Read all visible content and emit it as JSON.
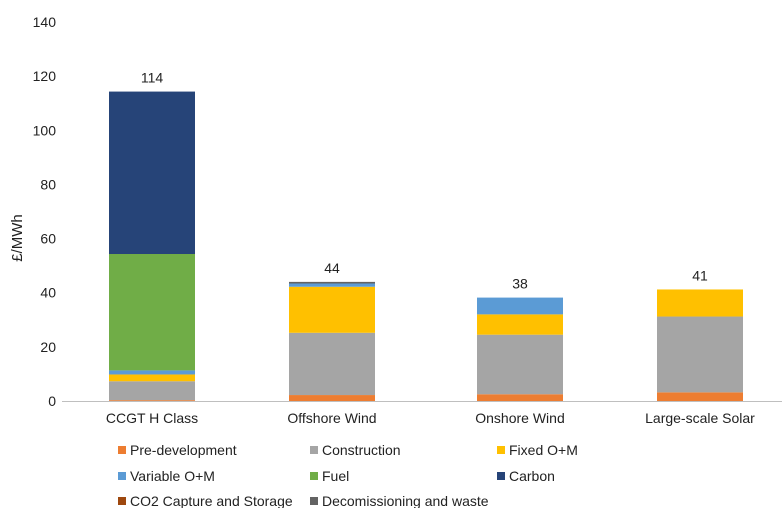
{
  "chart_data": {
    "type": "bar",
    "stacked": true,
    "ylabel": "£/MWh",
    "ylim": [
      0,
      140
    ],
    "yticks": [
      0,
      20,
      40,
      60,
      80,
      100,
      120,
      140
    ],
    "grid": false,
    "legend_position": "bottom",
    "categories": [
      "CCGT H Class",
      "Offshore Wind",
      "Onshore Wind",
      "Large-scale Solar"
    ],
    "totals": [
      "114",
      "44",
      "38",
      "41"
    ],
    "series": [
      {
        "name": "Pre-development",
        "color": "#ED7D31",
        "values": [
          0.3,
          2.2,
          2.5,
          3.2
        ]
      },
      {
        "name": "Construction",
        "color": "#A5A5A5",
        "values": [
          7,
          23,
          22,
          28
        ]
      },
      {
        "name": "Fixed O+M",
        "color": "#FFC000",
        "values": [
          2.5,
          17,
          7.5,
          10
        ]
      },
      {
        "name": "Variable O+M",
        "color": "#5B9BD5",
        "values": [
          1.5,
          1.2,
          6.2,
          0
        ]
      },
      {
        "name": "Fuel",
        "color": "#70AD47",
        "values": [
          43,
          0,
          0,
          0
        ]
      },
      {
        "name": "Carbon",
        "color": "#264478",
        "values": [
          60,
          0,
          0,
          0
        ]
      },
      {
        "name": "CO2 Capture and Storage",
        "color": "#9E480E",
        "values": [
          0,
          0,
          0,
          0
        ]
      },
      {
        "name": "Decomissioning and waste",
        "color": "#636363",
        "values": [
          0,
          0.6,
          0,
          0
        ]
      }
    ]
  }
}
